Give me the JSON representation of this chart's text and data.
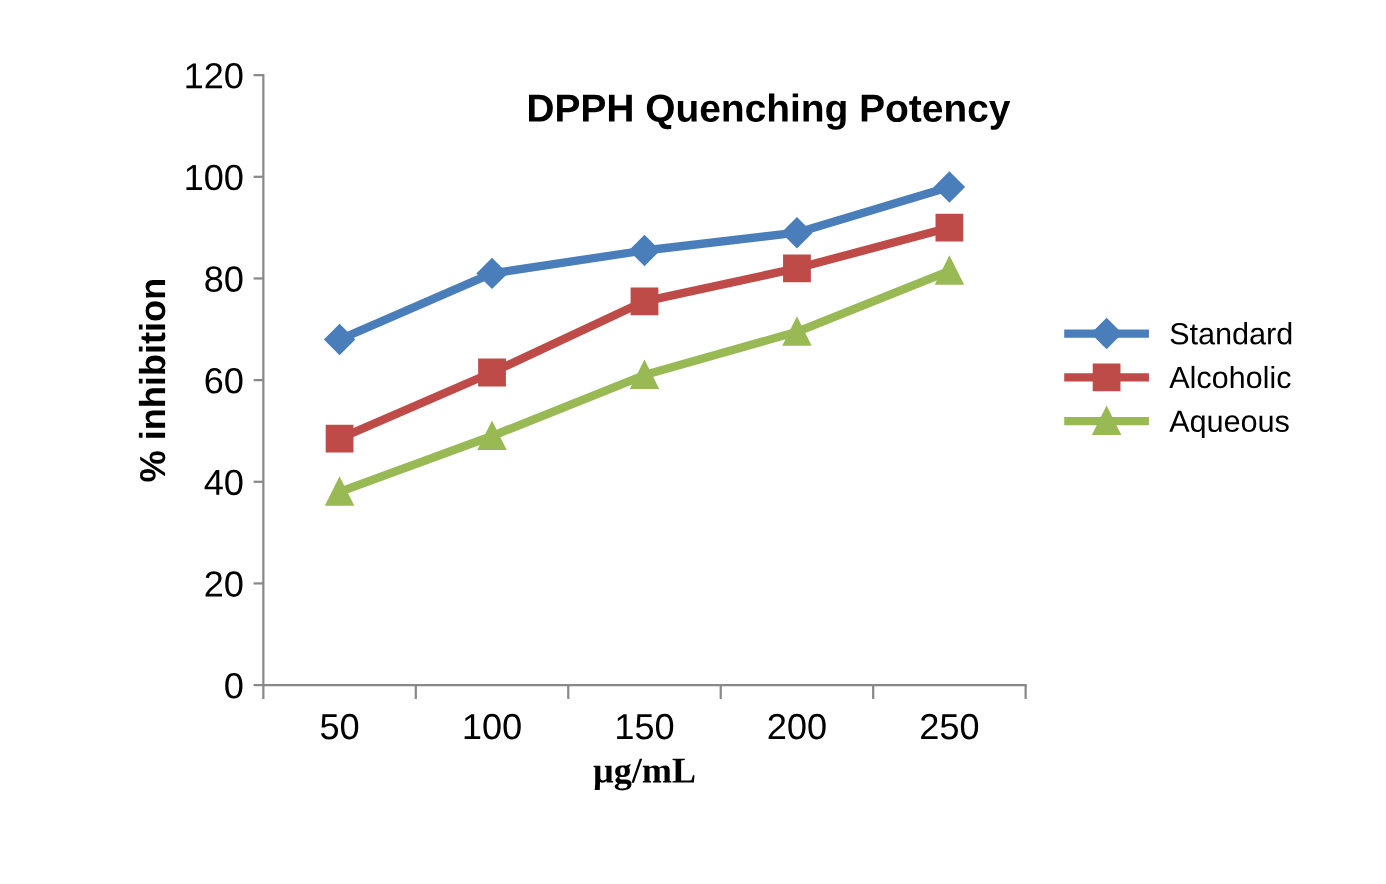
{
  "chart_data": {
    "type": "line",
    "title": "DPPH Quenching Potency",
    "xlabel": "µg/mL",
    "ylabel": "% inhibition",
    "categories": [
      "50",
      "100",
      "150",
      "200",
      "250"
    ],
    "series": [
      {
        "name": "Standard",
        "color": "#4a7ebb",
        "marker": "diamond",
        "values": [
          68,
          81,
          85.5,
          89,
          98
        ]
      },
      {
        "name": "Alcoholic",
        "color": "#be4b48",
        "marker": "square",
        "values": [
          48.5,
          61.5,
          75.5,
          82,
          90
        ]
      },
      {
        "name": "Aqueous",
        "color": "#98b954",
        "marker": "triangle",
        "values": [
          38,
          49,
          61,
          69.5,
          81.5
        ]
      }
    ],
    "ylim": [
      0,
      120
    ],
    "yticks": [
      0,
      20,
      40,
      60,
      80,
      100,
      120
    ],
    "grid": false,
    "legend": "right",
    "line_style": "solid"
  }
}
